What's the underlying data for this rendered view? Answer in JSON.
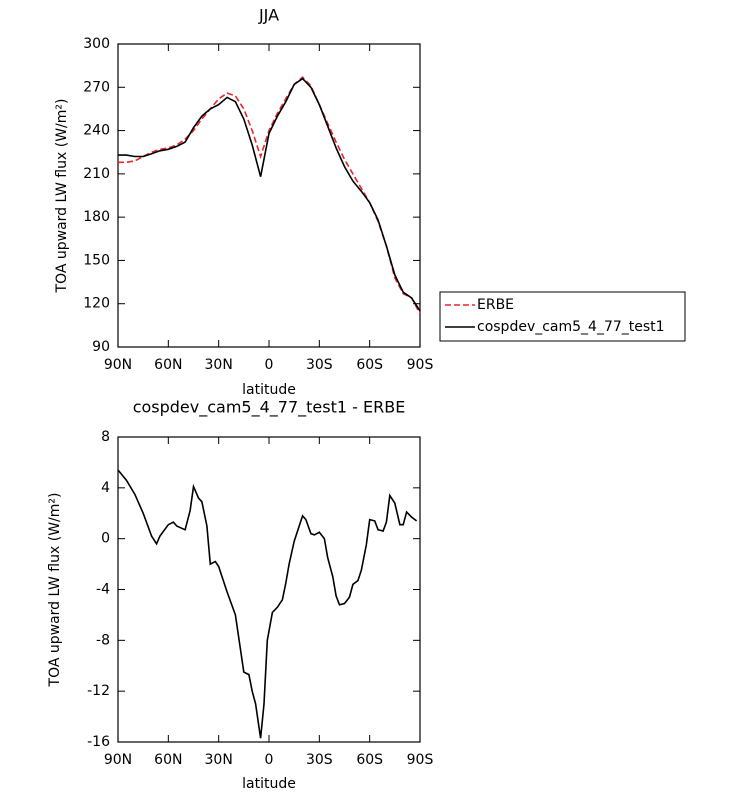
{
  "chart_data": [
    {
      "type": "line",
      "title": "JJA",
      "xlabel": "latitude",
      "ylabel": "TOA upward LW flux (W/m²)",
      "x": [
        90,
        85,
        80,
        75,
        70,
        65,
        60,
        55,
        50,
        45,
        40,
        35,
        30,
        25,
        20,
        15,
        10,
        5,
        0,
        -5,
        -10,
        -15,
        -20,
        -25,
        -30,
        -35,
        -40,
        -45,
        -50,
        -55,
        -60,
        -65,
        -70,
        -75,
        -80,
        -85,
        -90
      ],
      "xlim": [
        90,
        -90
      ],
      "xticks": [
        {
          "value": 90,
          "label": "90N"
        },
        {
          "value": 60,
          "label": "60N"
        },
        {
          "value": 30,
          "label": "30N"
        },
        0,
        {
          "value": -30,
          "label": "30S"
        },
        {
          "value": -60,
          "label": "60S"
        },
        {
          "value": -90,
          "label": "90S"
        }
      ],
      "ylim": [
        90,
        300
      ],
      "yticks": [
        90,
        120,
        150,
        180,
        210,
        240,
        270,
        300
      ],
      "legend": "right",
      "series": [
        {
          "name": "ERBE",
          "color": "#e8262b",
          "style": "dashed",
          "values": [
            218,
            218,
            219,
            222,
            225,
            227,
            228,
            230,
            234,
            240,
            248,
            255,
            262,
            266,
            264,
            255,
            240,
            222,
            240,
            252,
            262,
            272,
            277,
            271,
            258,
            245,
            232,
            220,
            210,
            200,
            190,
            177,
            160,
            138,
            127,
            124,
            113
          ]
        },
        {
          "name": "cospdev_cam5_4_77_test1",
          "color": "#000000",
          "style": "solid",
          "values": [
            223,
            223,
            222,
            222,
            224,
            226,
            227,
            229,
            232,
            242,
            250,
            255,
            258,
            263,
            260,
            248,
            230,
            208,
            238,
            250,
            260,
            272,
            276,
            270,
            258,
            243,
            228,
            215,
            205,
            198,
            190,
            178,
            160,
            140,
            128,
            124,
            115
          ]
        }
      ]
    },
    {
      "type": "line",
      "title": "cospdev_cam5_4_77_test1 - ERBE",
      "xlabel": "latitude",
      "ylabel": "TOA upward LW flux (W/m²)",
      "x": [
        90,
        85,
        80,
        75,
        70,
        67,
        65,
        60,
        57,
        55,
        50,
        47,
        45,
        42,
        40,
        37,
        35,
        32,
        30,
        25,
        20,
        15,
        12,
        10,
        8,
        5,
        3,
        1,
        -2,
        -5,
        -8,
        -10,
        -12,
        -15,
        -18,
        -20,
        -22,
        -25,
        -27,
        -30,
        -33,
        -35,
        -38,
        -40,
        -42,
        -45,
        -48,
        -50,
        -53,
        -55,
        -58,
        -60,
        -63,
        -65,
        -68,
        -70,
        -72,
        -75,
        -78,
        -80,
        -82,
        -85,
        -88
      ],
      "xlim": [
        90,
        -90
      ],
      "xticks": [
        {
          "value": 90,
          "label": "90N"
        },
        {
          "value": 60,
          "label": "60N"
        },
        {
          "value": 30,
          "label": "30N"
        },
        0,
        {
          "value": -30,
          "label": "30S"
        },
        {
          "value": -60,
          "label": "60S"
        },
        {
          "value": -90,
          "label": "90S"
        }
      ],
      "ylim": [
        -16,
        8
      ],
      "yticks": [
        -16,
        -12,
        -8,
        -4,
        0,
        4,
        8
      ],
      "series": [
        {
          "name": "cospdev_cam5_4_77_test1 - ERBE",
          "color": "#000000",
          "style": "solid",
          "values": [
            5.4,
            4.6,
            3.5,
            2.0,
            0.2,
            -0.4,
            0.2,
            1.1,
            1.3,
            1.0,
            0.7,
            2.2,
            4.1,
            3.2,
            2.9,
            1.0,
            -2.0,
            -1.8,
            -2.2,
            -4.2,
            -6.0,
            -10.5,
            -10.7,
            -12.0,
            -13.0,
            -15.7,
            -13.0,
            -8.0,
            -5.8,
            -5.4,
            -4.8,
            -3.5,
            -2.0,
            -0.2,
            1.0,
            1.8,
            1.5,
            0.4,
            0.3,
            0.5,
            0,
            -1.5,
            -3.0,
            -4.5,
            -5.2,
            -5.1,
            -4.6,
            -3.6,
            -3.3,
            -2.5,
            -0.5,
            1.5,
            1.4,
            0.7,
            0.6,
            1.3,
            3.4,
            2.8,
            1.1,
            1.1,
            2.1,
            1.7,
            1.4
          ]
        }
      ]
    }
  ]
}
